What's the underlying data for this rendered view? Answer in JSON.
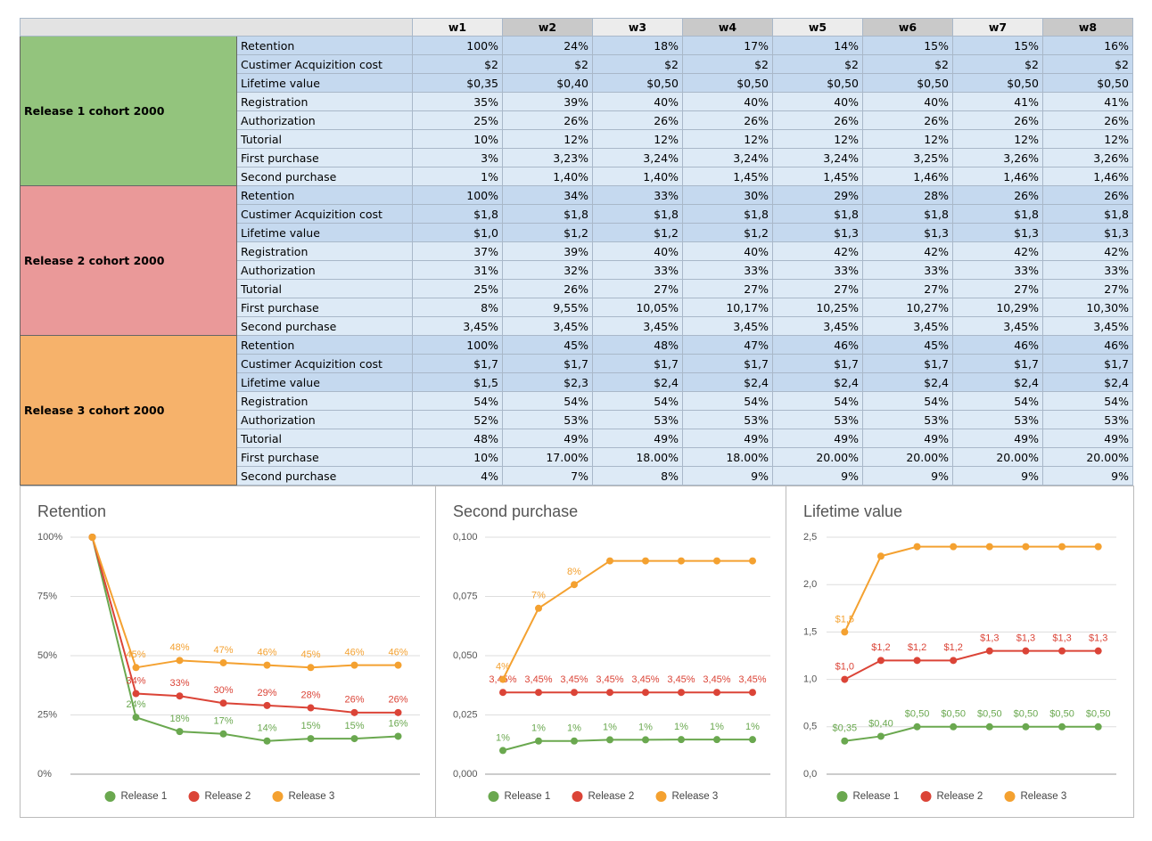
{
  "table": {
    "header": [
      "w1",
      "w2",
      "w3",
      "w4",
      "w5",
      "w6",
      "w7",
      "w8"
    ],
    "groups": [
      {
        "label": "Release 1 cohort 2000",
        "rows": [
          {
            "metric": "Retention",
            "values": [
              "100%",
              "24%",
              "18%",
              "17%",
              "14%",
              "15%",
              "15%",
              "16%"
            ]
          },
          {
            "metric": "Custimer Acquizition cost",
            "values": [
              "$2",
              "$2",
              "$2",
              "$2",
              "$2",
              "$2",
              "$2",
              "$2"
            ]
          },
          {
            "metric": "Lifetime value",
            "values": [
              "$0,35",
              "$0,40",
              "$0,50",
              "$0,50",
              "$0,50",
              "$0,50",
              "$0,50",
              "$0,50"
            ]
          },
          {
            "metric": "Registration",
            "values": [
              "35%",
              "39%",
              "40%",
              "40%",
              "40%",
              "40%",
              "41%",
              "41%"
            ]
          },
          {
            "metric": "Authorization",
            "values": [
              "25%",
              "26%",
              "26%",
              "26%",
              "26%",
              "26%",
              "26%",
              "26%"
            ]
          },
          {
            "metric": "Tutorial",
            "values": [
              "10%",
              "12%",
              "12%",
              "12%",
              "12%",
              "12%",
              "12%",
              "12%"
            ]
          },
          {
            "metric": "First purchase",
            "values": [
              "3%",
              "3,23%",
              "3,24%",
              "3,24%",
              "3,24%",
              "3,25%",
              "3,26%",
              "3,26%"
            ]
          },
          {
            "metric": "Second purchase",
            "values": [
              "1%",
              "1,40%",
              "1,40%",
              "1,45%",
              "1,45%",
              "1,46%",
              "1,46%",
              "1,46%"
            ]
          }
        ]
      },
      {
        "label": "Release 2 cohort 2000",
        "rows": [
          {
            "metric": "Retention",
            "values": [
              "100%",
              "34%",
              "33%",
              "30%",
              "29%",
              "28%",
              "26%",
              "26%"
            ]
          },
          {
            "metric": "Custimer Acquizition cost",
            "values": [
              "$1,8",
              "$1,8",
              "$1,8",
              "$1,8",
              "$1,8",
              "$1,8",
              "$1,8",
              "$1,8"
            ]
          },
          {
            "metric": "Lifetime value",
            "values": [
              "$1,0",
              "$1,2",
              "$1,2",
              "$1,2",
              "$1,3",
              "$1,3",
              "$1,3",
              "$1,3"
            ]
          },
          {
            "metric": "Registration",
            "values": [
              "37%",
              "39%",
              "40%",
              "40%",
              "42%",
              "42%",
              "42%",
              "42%"
            ]
          },
          {
            "metric": "Authorization",
            "values": [
              "31%",
              "32%",
              "33%",
              "33%",
              "33%",
              "33%",
              "33%",
              "33%"
            ]
          },
          {
            "metric": "Tutorial",
            "values": [
              "25%",
              "26%",
              "27%",
              "27%",
              "27%",
              "27%",
              "27%",
              "27%"
            ]
          },
          {
            "metric": "First purchase",
            "values": [
              "8%",
              "9,55%",
              "10,05%",
              "10,17%",
              "10,25%",
              "10,27%",
              "10,29%",
              "10,30%"
            ]
          },
          {
            "metric": "Second purchase",
            "values": [
              "3,45%",
              "3,45%",
              "3,45%",
              "3,45%",
              "3,45%",
              "3,45%",
              "3,45%",
              "3,45%"
            ]
          }
        ]
      },
      {
        "label": "Release 3 cohort 2000",
        "rows": [
          {
            "metric": "Retention",
            "values": [
              "100%",
              "45%",
              "48%",
              "47%",
              "46%",
              "45%",
              "46%",
              "46%"
            ]
          },
          {
            "metric": "Custimer Acquizition cost",
            "values": [
              "$1,7",
              "$1,7",
              "$1,7",
              "$1,7",
              "$1,7",
              "$1,7",
              "$1,7",
              "$1,7"
            ]
          },
          {
            "metric": "Lifetime value",
            "values": [
              "$1,5",
              "$2,3",
              "$2,4",
              "$2,4",
              "$2,4",
              "$2,4",
              "$2,4",
              "$2,4"
            ]
          },
          {
            "metric": "Registration",
            "values": [
              "54%",
              "54%",
              "54%",
              "54%",
              "54%",
              "54%",
              "54%",
              "54%"
            ]
          },
          {
            "metric": "Authorization",
            "values": [
              "52%",
              "53%",
              "53%",
              "53%",
              "53%",
              "53%",
              "53%",
              "53%"
            ]
          },
          {
            "metric": "Tutorial",
            "values": [
              "48%",
              "49%",
              "49%",
              "49%",
              "49%",
              "49%",
              "49%",
              "49%"
            ]
          },
          {
            "metric": "First purchase",
            "values": [
              "10%",
              "17.00%",
              "18.00%",
              "18.00%",
              "20.00%",
              "20.00%",
              "20.00%",
              "20.00%"
            ]
          },
          {
            "metric": "Second purchase",
            "values": [
              "4%",
              "7%",
              "8%",
              "9%",
              "9%",
              "9%",
              "9%",
              "9%"
            ]
          }
        ]
      }
    ]
  },
  "chart_data": [
    {
      "type": "line",
      "title": "Retention",
      "ylim": [
        0,
        100
      ],
      "yticks": [
        {
          "value": 0,
          "label": "0%"
        },
        {
          "value": 25,
          "label": "25%"
        },
        {
          "value": 50,
          "label": "50%"
        },
        {
          "value": 75,
          "label": "75%"
        },
        {
          "value": 100,
          "label": "100%"
        }
      ],
      "grid": true,
      "legend": "bottom",
      "series": [
        {
          "name": "Release 1",
          "color": "#6aa84f",
          "values": [
            100,
            24,
            18,
            17,
            14,
            15,
            15,
            16
          ],
          "value_labels": [
            null,
            "24%",
            "18%",
            "17%",
            "14%",
            "15%",
            "15%",
            "16%"
          ]
        },
        {
          "name": "Release 2",
          "color": "#db4437",
          "values": [
            100,
            34,
            33,
            30,
            29,
            28,
            26,
            26
          ],
          "value_labels": [
            null,
            "34%",
            "33%",
            "30%",
            "29%",
            "28%",
            "26%",
            "26%"
          ]
        },
        {
          "name": "Release 3",
          "color": "#f4a130",
          "values": [
            100,
            45,
            48,
            47,
            46,
            45,
            46,
            46
          ],
          "value_labels": [
            null,
            "45%",
            "48%",
            "47%",
            "46%",
            "45%",
            "46%",
            "46%"
          ]
        }
      ]
    },
    {
      "type": "line",
      "title": "Second purchase",
      "ylim": [
        0,
        0.1
      ],
      "yticks": [
        {
          "value": 0,
          "label": "0,000"
        },
        {
          "value": 0.025,
          "label": "0,025"
        },
        {
          "value": 0.05,
          "label": "0,050"
        },
        {
          "value": 0.075,
          "label": "0,075"
        },
        {
          "value": 0.1,
          "label": "0,100"
        }
      ],
      "grid": true,
      "legend": "bottom",
      "series": [
        {
          "name": "Release 1",
          "color": "#6aa84f",
          "values": [
            0.01,
            0.014,
            0.014,
            0.0145,
            0.0145,
            0.0146,
            0.0146,
            0.0146
          ],
          "value_labels": [
            "1%",
            "1%",
            "1%",
            "1%",
            "1%",
            "1%",
            "1%",
            "1%"
          ]
        },
        {
          "name": "Release 2",
          "color": "#db4437",
          "values": [
            0.0345,
            0.0345,
            0.0345,
            0.0345,
            0.0345,
            0.0345,
            0.0345,
            0.0345
          ],
          "value_labels": [
            "3,45%",
            "3,45%",
            "3,45%",
            "3,45%",
            "3,45%",
            "3,45%",
            "3,45%",
            "3,45%"
          ]
        },
        {
          "name": "Release 3",
          "color": "#f4a130",
          "values": [
            0.04,
            0.07,
            0.08,
            0.09,
            0.09,
            0.09,
            0.09,
            0.09
          ],
          "value_labels": [
            "4%",
            "7%",
            "8%",
            null,
            null,
            null,
            null,
            null
          ]
        }
      ]
    },
    {
      "type": "line",
      "title": "Lifetime value",
      "ylim": [
        0,
        2.5
      ],
      "yticks": [
        {
          "value": 0,
          "label": "0,0"
        },
        {
          "value": 0.5,
          "label": "0,5"
        },
        {
          "value": 1,
          "label": "1,0"
        },
        {
          "value": 1.5,
          "label": "1,5"
        },
        {
          "value": 2,
          "label": "2,0"
        },
        {
          "value": 2.5,
          "label": "2,5"
        }
      ],
      "grid": true,
      "legend": "bottom",
      "series": [
        {
          "name": "Release 1",
          "color": "#6aa84f",
          "values": [
            0.35,
            0.4,
            0.5,
            0.5,
            0.5,
            0.5,
            0.5,
            0.5
          ],
          "value_labels": [
            "$0,35",
            "$0,40",
            "$0,50",
            "$0,50",
            "$0,50",
            "$0,50",
            "$0,50",
            "$0,50"
          ]
        },
        {
          "name": "Release 2",
          "color": "#db4437",
          "values": [
            1.0,
            1.2,
            1.2,
            1.2,
            1.3,
            1.3,
            1.3,
            1.3
          ],
          "value_labels": [
            "$1,0",
            "$1,2",
            "$1,2",
            "$1,2",
            "$1,3",
            "$1,3",
            "$1,3",
            "$1,3"
          ]
        },
        {
          "name": "Release 3",
          "color": "#f4a130",
          "values": [
            1.5,
            2.3,
            2.4,
            2.4,
            2.4,
            2.4,
            2.4,
            2.4
          ],
          "value_labels": [
            "$1,5",
            null,
            null,
            null,
            null,
            null,
            null,
            null
          ]
        }
      ]
    }
  ]
}
